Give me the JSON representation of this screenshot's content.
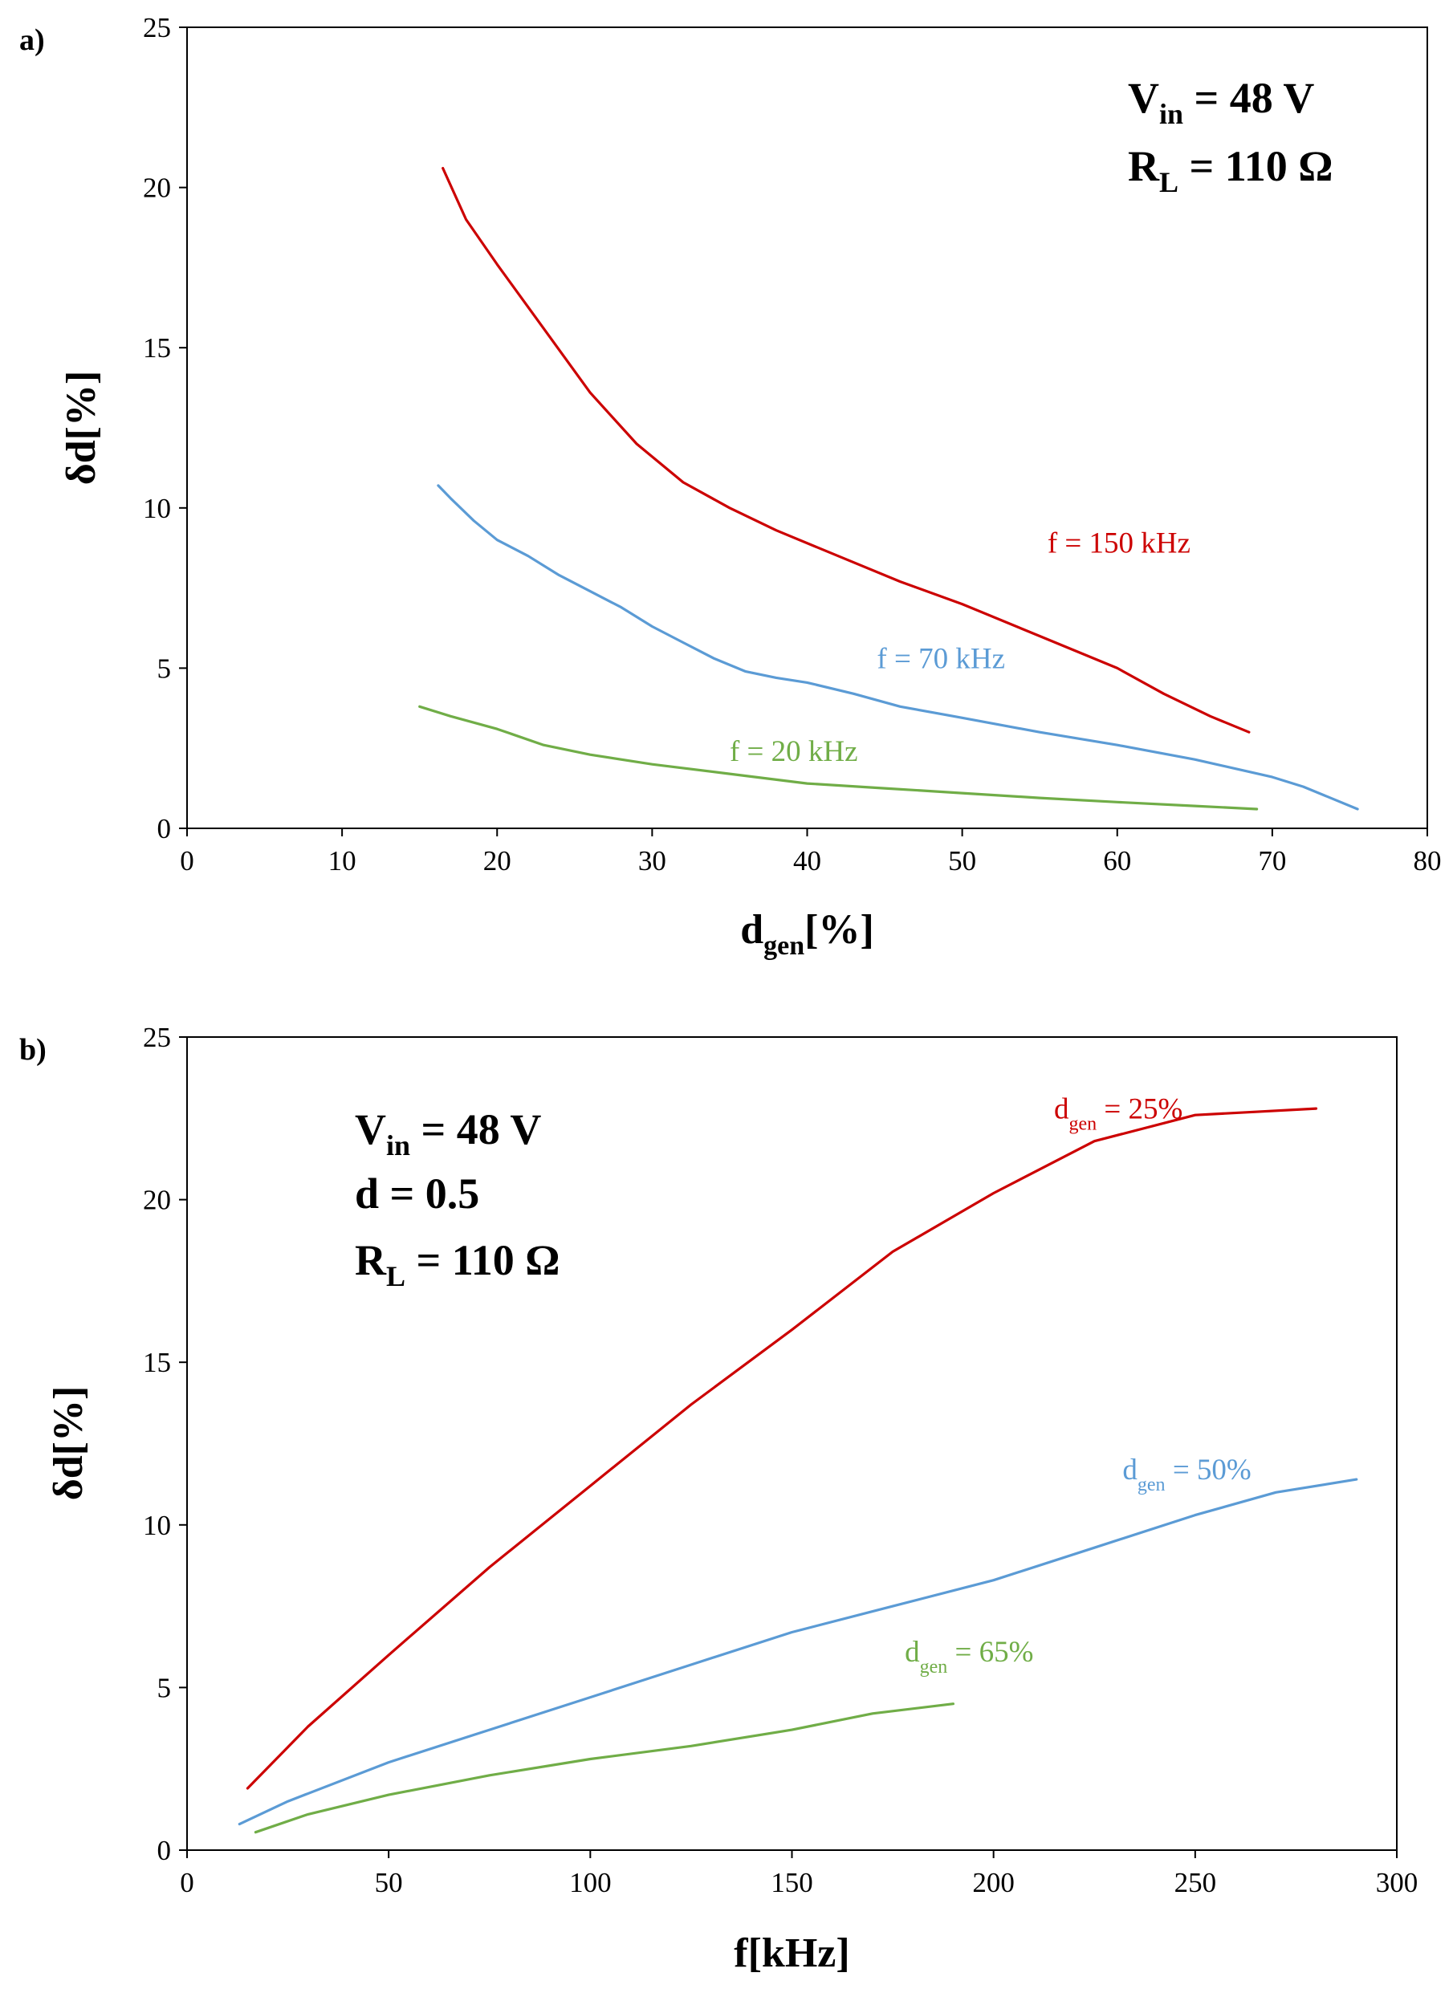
{
  "chart_data": [
    {
      "type": "line",
      "panel_label": "a)",
      "xlabel": {
        "main": "d",
        "sub": "gen",
        "rest": "[%]"
      },
      "ylabel": "δd[%]",
      "xlim": [
        0,
        80
      ],
      "ylim": [
        0,
        25
      ],
      "xticks": [
        "0",
        "10",
        "20",
        "30",
        "40",
        "50",
        "60",
        "70",
        "80"
      ],
      "yticks": [
        "0",
        "5",
        "10",
        "15",
        "20",
        "25"
      ],
      "annotation": [
        {
          "main": "V",
          "sub": "in",
          "rest": " = 48 V"
        },
        {
          "main": "R",
          "sub": "L",
          "rest": " = 110 Ω"
        }
      ],
      "series": [
        {
          "name": "f = 150 kHz",
          "color": "#cc0000",
          "label": {
            "main": "f = 150 kHz",
            "sub": "",
            "rest": ""
          },
          "label_at": [
            55.5,
            8.6
          ],
          "points": [
            [
              16.5,
              20.6
            ],
            [
              18,
              19
            ],
            [
              20,
              17.6
            ],
            [
              23,
              15.6
            ],
            [
              26,
              13.6
            ],
            [
              29,
              12.0
            ],
            [
              32,
              10.8
            ],
            [
              35,
              10.0
            ],
            [
              38,
              9.3
            ],
            [
              42,
              8.5
            ],
            [
              46,
              7.7
            ],
            [
              50,
              7.0
            ],
            [
              55,
              6.0
            ],
            [
              60,
              5.0
            ],
            [
              63,
              4.2
            ],
            [
              66,
              3.5
            ],
            [
              68.5,
              3.0
            ]
          ]
        },
        {
          "name": "f = 70 kHz",
          "color": "#5b9bd5",
          "label": {
            "main": "f = 70 kHz",
            "sub": "",
            "rest": ""
          },
          "label_at": [
            44.5,
            5.0
          ],
          "points": [
            [
              16.2,
              10.7
            ],
            [
              17,
              10.3
            ],
            [
              18.5,
              9.6
            ],
            [
              20,
              9.0
            ],
            [
              22,
              8.5
            ],
            [
              24,
              7.9
            ],
            [
              26,
              7.4
            ],
            [
              28,
              6.9
            ],
            [
              30,
              6.3
            ],
            [
              32,
              5.8
            ],
            [
              34,
              5.3
            ],
            [
              36,
              4.9
            ],
            [
              38,
              4.7
            ],
            [
              40,
              4.55
            ],
            [
              43,
              4.2
            ],
            [
              46,
              3.8
            ],
            [
              50,
              3.45
            ],
            [
              55,
              3.0
            ],
            [
              60,
              2.6
            ],
            [
              65,
              2.15
            ],
            [
              70,
              1.6
            ],
            [
              72,
              1.3
            ],
            [
              75.5,
              0.6
            ]
          ]
        },
        {
          "name": "f = 20 kHz",
          "color": "#70ad47",
          "label": {
            "main": "f = 20 kHz",
            "sub": "",
            "rest": ""
          },
          "label_at": [
            35,
            2.1
          ],
          "points": [
            [
              15,
              3.8
            ],
            [
              17,
              3.5
            ],
            [
              20,
              3.1
            ],
            [
              23,
              2.6
            ],
            [
              26,
              2.3
            ],
            [
              30,
              2.0
            ],
            [
              35,
              1.7
            ],
            [
              40,
              1.4
            ],
            [
              45,
              1.25
            ],
            [
              50,
              1.1
            ],
            [
              55,
              0.95
            ],
            [
              60,
              0.82
            ],
            [
              65,
              0.7
            ],
            [
              69,
              0.6
            ]
          ]
        }
      ]
    },
    {
      "type": "line",
      "panel_label": "b)",
      "xlabel": {
        "main": "f[kHz]",
        "sub": "",
        "rest": ""
      },
      "ylabel": "δd[%]",
      "xlim": [
        0,
        300
      ],
      "ylim": [
        0,
        25
      ],
      "xticks": [
        "0",
        "50",
        "100",
        "150",
        "200",
        "250",
        "300"
      ],
      "yticks": [
        "0",
        "5",
        "10",
        "15",
        "20",
        "25"
      ],
      "annotation": [
        {
          "main": "V",
          "sub": "in",
          "rest": " = 48 V"
        },
        {
          "main": "d = 0.5",
          "sub": "",
          "rest": ""
        },
        {
          "main": "R",
          "sub": "L",
          "rest": " = 110 Ω"
        }
      ],
      "series": [
        {
          "name": "dgen = 25%",
          "color": "#cc0000",
          "label": {
            "main": "d",
            "sub": "gen",
            "rest": " = 25%"
          },
          "label_at": [
            215,
            22.5
          ],
          "points": [
            [
              15,
              1.9
            ],
            [
              30,
              3.8
            ],
            [
              50,
              6.0
            ],
            [
              75,
              8.7
            ],
            [
              100,
              11.2
            ],
            [
              125,
              13.7
            ],
            [
              150,
              16.0
            ],
            [
              175,
              18.4
            ],
            [
              200,
              20.2
            ],
            [
              225,
              21.8
            ],
            [
              250,
              22.6
            ],
            [
              265,
              22.7
            ],
            [
              280,
              22.8
            ]
          ]
        },
        {
          "name": "dgen = 50%",
          "color": "#5b9bd5",
          "label": {
            "main": "d",
            "sub": "gen",
            "rest": " = 50%"
          },
          "label_at": [
            232,
            11.4
          ],
          "points": [
            [
              13,
              0.8
            ],
            [
              25,
              1.5
            ],
            [
              50,
              2.7
            ],
            [
              75,
              3.7
            ],
            [
              100,
              4.7
            ],
            [
              125,
              5.7
            ],
            [
              150,
              6.7
            ],
            [
              175,
              7.5
            ],
            [
              200,
              8.3
            ],
            [
              225,
              9.3
            ],
            [
              250,
              10.3
            ],
            [
              270,
              11.0
            ],
            [
              290,
              11.4
            ]
          ]
        },
        {
          "name": "dgen = 65%",
          "color": "#70ad47",
          "label": {
            "main": "d",
            "sub": "gen",
            "rest": " = 65%"
          },
          "label_at": [
            178,
            5.8
          ],
          "points": [
            [
              17,
              0.55
            ],
            [
              30,
              1.1
            ],
            [
              50,
              1.7
            ],
            [
              75,
              2.3
            ],
            [
              100,
              2.8
            ],
            [
              125,
              3.2
            ],
            [
              150,
              3.7
            ],
            [
              170,
              4.2
            ],
            [
              190,
              4.5
            ]
          ]
        }
      ]
    }
  ]
}
